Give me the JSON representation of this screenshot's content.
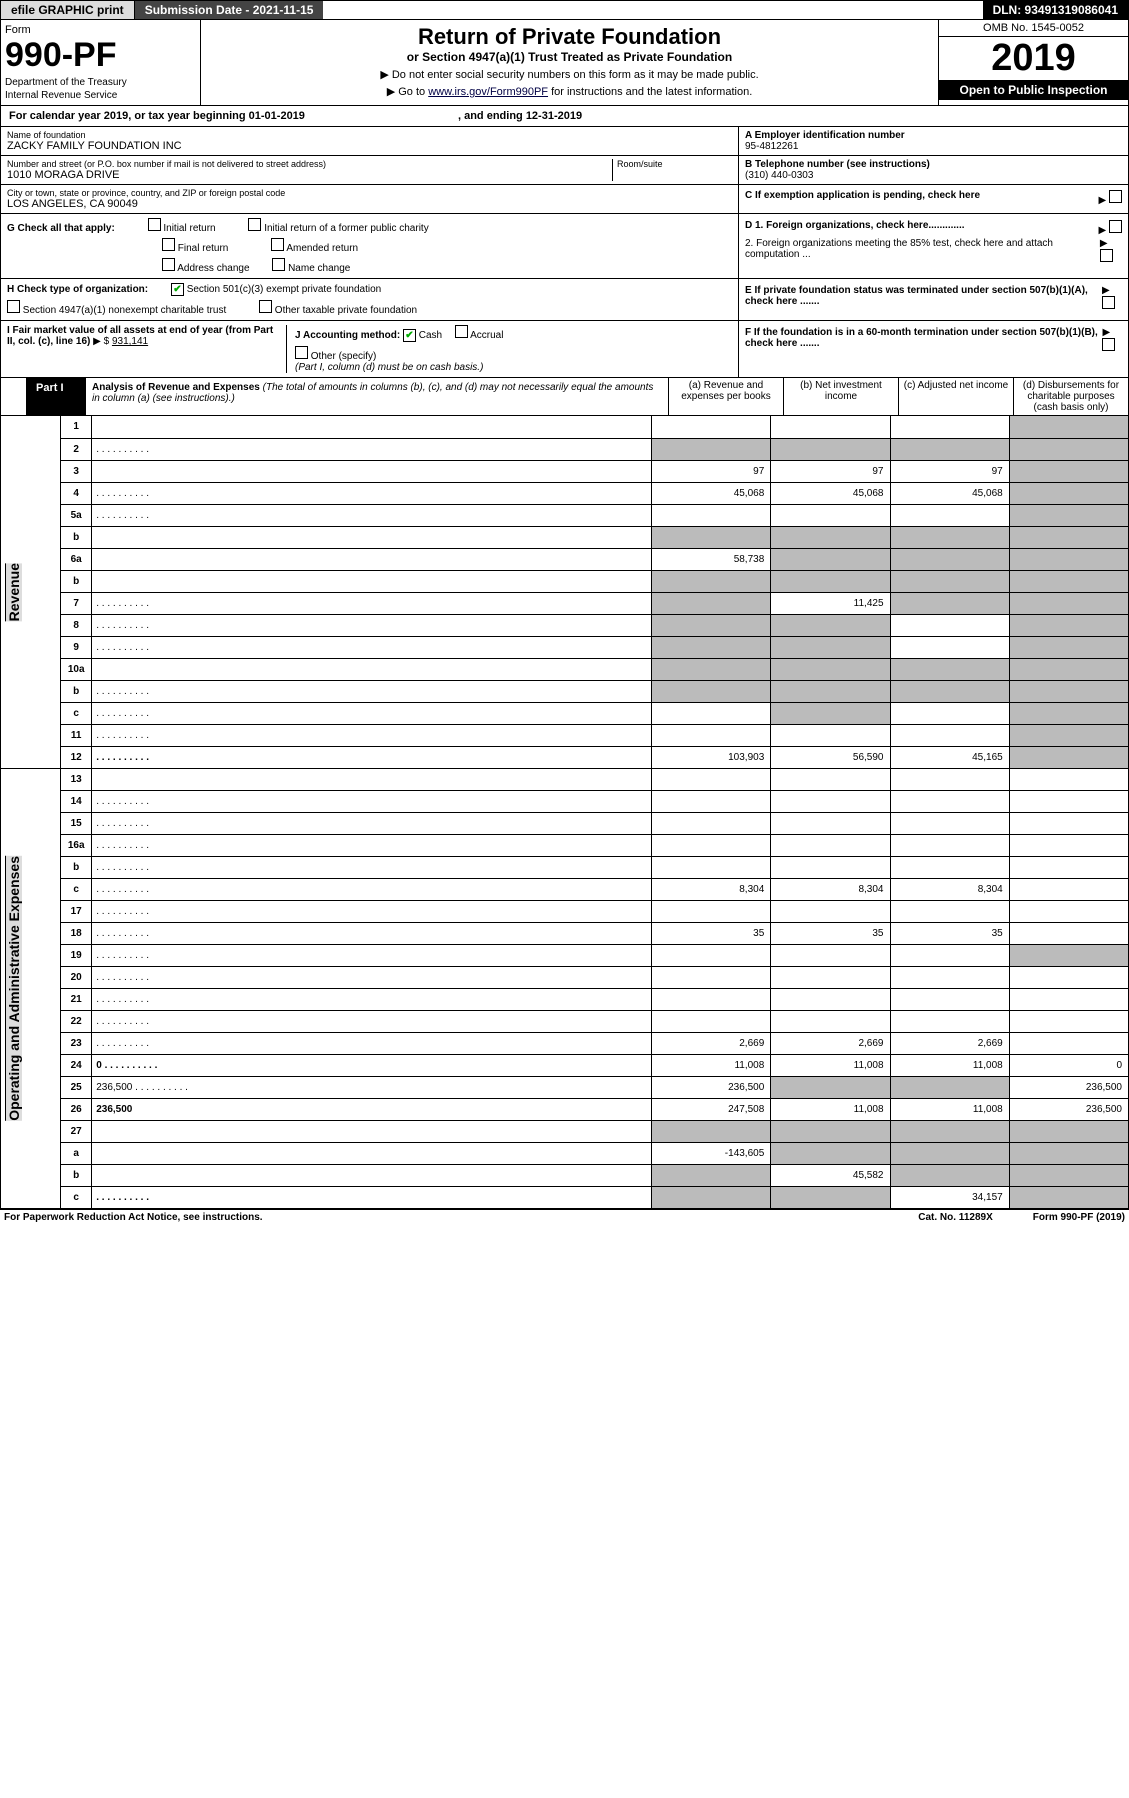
{
  "topbar": {
    "efile": "efile GRAPHIC print",
    "submission": "Submission Date - 2021-11-15",
    "dln": "DLN: 93491319086041"
  },
  "header": {
    "form_label": "Form",
    "form_no": "990-PF",
    "dept": "Department of the Treasury",
    "irs": "Internal Revenue Service",
    "title": "Return of Private Foundation",
    "subtitle": "or Section 4947(a)(1) Trust Treated as Private Foundation",
    "instr1": "Do not enter social security numbers on this form as it may be made public.",
    "instr2_pre": "Go to ",
    "instr2_link": "www.irs.gov/Form990PF",
    "instr2_post": " for instructions and the latest information.",
    "omb": "OMB No. 1545-0052",
    "year": "2019",
    "open": "Open to Public Inspection"
  },
  "calyear": {
    "text": "For calendar year 2019, or tax year beginning 01-01-2019",
    "end": ", and ending 12-31-2019"
  },
  "id": {
    "name_lbl": "Name of foundation",
    "name": "ZACKY FAMILY FOUNDATION INC",
    "addr_lbl": "Number and street (or P.O. box number if mail is not delivered to street address)",
    "addr": "1010 MORAGA DRIVE",
    "room_lbl": "Room/suite",
    "room": "",
    "city_lbl": "City or town, state or province, country, and ZIP or foreign postal code",
    "city": "LOS ANGELES, CA  90049",
    "a_lbl": "A Employer identification number",
    "a_val": "95-4812261",
    "b_lbl": "B Telephone number (see instructions)",
    "b_val": "(310) 440-0303",
    "c_lbl": "C If exemption application is pending, check here",
    "d1": "D 1. Foreign organizations, check here.............",
    "d2": "2. Foreign organizations meeting the 85% test, check here and attach computation ...",
    "e_lbl": "E  If private foundation status was terminated under section 507(b)(1)(A), check here .......",
    "f_lbl": "F  If the foundation is in a 60-month termination under section 507(b)(1)(B), check here .......",
    "g_lbl": "G Check all that apply:",
    "g_initial": "Initial return",
    "g_initial_former": "Initial return of a former public charity",
    "g_final": "Final return",
    "g_amended": "Amended return",
    "g_addr": "Address change",
    "g_name": "Name change",
    "h_lbl": "H Check type of organization:",
    "h_501c3": "Section 501(c)(3) exempt private foundation",
    "h_4947": "Section 4947(a)(1) nonexempt charitable trust",
    "h_other": "Other taxable private foundation",
    "i_lbl": "I Fair market value of all assets at end of year (from Part II, col. (c), line 16)",
    "i_val": "931,141",
    "j_lbl": "J Accounting method:",
    "j_cash": "Cash",
    "j_accrual": "Accrual",
    "j_other": "Other (specify)",
    "j_note": "(Part I, column (d) must be on cash basis.)"
  },
  "part1": {
    "hdr": "Part I",
    "title": "Analysis of Revenue and Expenses",
    "note": "(The total of amounts in columns (b), (c), and (d) may not necessarily equal the amounts in column (a) (see instructions).)",
    "col_a": "(a) Revenue and expenses per books",
    "col_b": "(b) Net investment income",
    "col_c": "(c) Adjusted net income",
    "col_d": "(d) Disbursements for charitable purposes (cash basis only)",
    "vert_rev": "Revenue",
    "vert_exp": "Operating and Administrative Expenses"
  },
  "rows": [
    {
      "n": "1",
      "d": "",
      "a": "",
      "b": "",
      "c": "",
      "d_gray": true
    },
    {
      "n": "2",
      "d": "",
      "a": "",
      "b": "",
      "c": "",
      "a_gray": true,
      "b_gray": true,
      "c_gray": true,
      "d_gray": true,
      "dots": true
    },
    {
      "n": "3",
      "d": "",
      "a": "97",
      "b": "97",
      "c": "97",
      "d_gray": true
    },
    {
      "n": "4",
      "d": "",
      "a": "45,068",
      "b": "45,068",
      "c": "45,068",
      "d_gray": true,
      "dots": true
    },
    {
      "n": "5a",
      "d": "",
      "a": "",
      "b": "",
      "c": "",
      "d_gray": true,
      "dots": true
    },
    {
      "n": "b",
      "d": "",
      "a": "",
      "b": "",
      "c": "",
      "a_gray": true,
      "b_gray": true,
      "c_gray": true,
      "d_gray": true
    },
    {
      "n": "6a",
      "d": "",
      "a": "58,738",
      "b": "",
      "c": "",
      "b_gray": true,
      "c_gray": true,
      "d_gray": true
    },
    {
      "n": "b",
      "d": "",
      "a": "",
      "b": "",
      "c": "",
      "a_gray": true,
      "b_gray": true,
      "c_gray": true,
      "d_gray": true
    },
    {
      "n": "7",
      "d": "",
      "a": "",
      "b": "11,425",
      "c": "",
      "a_gray": true,
      "c_gray": true,
      "d_gray": true,
      "dots": true
    },
    {
      "n": "8",
      "d": "",
      "a": "",
      "b": "",
      "c": "",
      "a_gray": true,
      "b_gray": true,
      "d_gray": true,
      "dots": true
    },
    {
      "n": "9",
      "d": "",
      "a": "",
      "b": "",
      "c": "",
      "a_gray": true,
      "b_gray": true,
      "d_gray": true,
      "dots": true
    },
    {
      "n": "10a",
      "d": "",
      "a": "",
      "b": "",
      "c": "",
      "a_gray": true,
      "b_gray": true,
      "c_gray": true,
      "d_gray": true
    },
    {
      "n": "b",
      "d": "",
      "a": "",
      "b": "",
      "c": "",
      "a_gray": true,
      "b_gray": true,
      "c_gray": true,
      "d_gray": true,
      "dots": true
    },
    {
      "n": "c",
      "d": "",
      "a": "",
      "b": "",
      "c": "",
      "b_gray": true,
      "d_gray": true,
      "dots": true
    },
    {
      "n": "11",
      "d": "",
      "a": "",
      "b": "",
      "c": "",
      "d_gray": true,
      "dots": true
    },
    {
      "n": "12",
      "d": "",
      "a": "103,903",
      "b": "56,590",
      "c": "45,165",
      "d_gray": true,
      "bold": true,
      "dots": true
    },
    {
      "n": "13",
      "d": "",
      "a": "",
      "b": "",
      "c": ""
    },
    {
      "n": "14",
      "d": "",
      "a": "",
      "b": "",
      "c": "",
      "dots": true
    },
    {
      "n": "15",
      "d": "",
      "a": "",
      "b": "",
      "c": "",
      "dots": true
    },
    {
      "n": "16a",
      "d": "",
      "a": "",
      "b": "",
      "c": "",
      "dots": true
    },
    {
      "n": "b",
      "d": "",
      "a": "",
      "b": "",
      "c": "",
      "dots": true
    },
    {
      "n": "c",
      "d": "",
      "a": "8,304",
      "b": "8,304",
      "c": "8,304",
      "dots": true
    },
    {
      "n": "17",
      "d": "",
      "a": "",
      "b": "",
      "c": "",
      "dots": true
    },
    {
      "n": "18",
      "d": "",
      "a": "35",
      "b": "35",
      "c": "35",
      "dots": true
    },
    {
      "n": "19",
      "d": "",
      "a": "",
      "b": "",
      "c": "",
      "d_gray": true,
      "dots": true
    },
    {
      "n": "20",
      "d": "",
      "a": "",
      "b": "",
      "c": "",
      "dots": true
    },
    {
      "n": "21",
      "d": "",
      "a": "",
      "b": "",
      "c": "",
      "dots": true
    },
    {
      "n": "22",
      "d": "",
      "a": "",
      "b": "",
      "c": "",
      "dots": true
    },
    {
      "n": "23",
      "d": "",
      "a": "2,669",
      "b": "2,669",
      "c": "2,669",
      "dots": true
    },
    {
      "n": "24",
      "d": "0",
      "a": "11,008",
      "b": "11,008",
      "c": "11,008",
      "bold": true,
      "dots": true
    },
    {
      "n": "25",
      "d": "236,500",
      "a": "236,500",
      "b": "",
      "c": "",
      "b_gray": true,
      "c_gray": true,
      "dots": true
    },
    {
      "n": "26",
      "d": "236,500",
      "a": "247,508",
      "b": "11,008",
      "c": "11,008",
      "bold": true
    },
    {
      "n": "27",
      "d": "",
      "a": "",
      "b": "",
      "c": "",
      "a_gray": true,
      "b_gray": true,
      "c_gray": true,
      "d_gray": true
    },
    {
      "n": "a",
      "d": "",
      "a": "-143,605",
      "b": "",
      "c": "",
      "b_gray": true,
      "c_gray": true,
      "d_gray": true,
      "bold": true
    },
    {
      "n": "b",
      "d": "",
      "a": "",
      "b": "45,582",
      "c": "",
      "a_gray": true,
      "c_gray": true,
      "d_gray": true,
      "bold": true
    },
    {
      "n": "c",
      "d": "",
      "a": "",
      "b": "",
      "c": "34,157",
      "a_gray": true,
      "b_gray": true,
      "d_gray": true,
      "bold": true,
      "dots": true
    }
  ],
  "footer": {
    "left": "For Paperwork Reduction Act Notice, see instructions.",
    "mid": "Cat. No. 11289X",
    "right": "Form 990-PF (2019)"
  }
}
